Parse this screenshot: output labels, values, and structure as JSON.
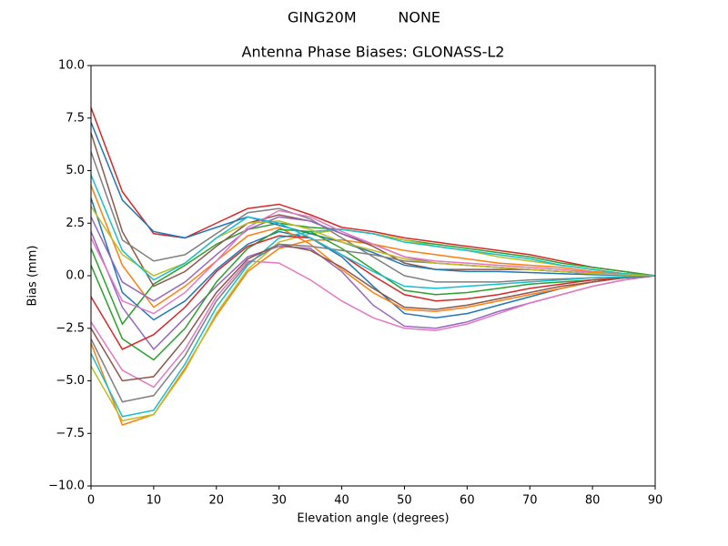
{
  "chart_data": {
    "type": "line",
    "suptitle": "GING20M         NONE",
    "title": "Antenna Phase Biases: GLONASS-L2",
    "xlabel": "Elevation angle (degrees)",
    "ylabel": "Bias (mm)",
    "x": [
      0,
      5,
      10,
      15,
      20,
      25,
      30,
      35,
      40,
      45,
      50,
      55,
      60,
      65,
      70,
      75,
      80,
      85,
      90
    ],
    "xlim": [
      0,
      90
    ],
    "ylim": [
      -10,
      10
    ],
    "xticks": [
      0,
      10,
      20,
      30,
      40,
      50,
      60,
      70,
      80,
      90
    ],
    "yticks": [
      {
        "value": -10,
        "label": "−10.0"
      },
      {
        "value": -7.5,
        "label": "−7.5"
      },
      {
        "value": -5,
        "label": "−5.0"
      },
      {
        "value": -2.5,
        "label": "−2.5"
      },
      {
        "value": 0,
        "label": "0.0"
      },
      {
        "value": 2.5,
        "label": "2.5"
      },
      {
        "value": 5,
        "label": "5.0"
      },
      {
        "value": 7.5,
        "label": "7.5"
      },
      {
        "value": 10,
        "label": "10.0"
      }
    ],
    "series": [
      {
        "color": "#d62728",
        "values": [
          8,
          4,
          2,
          1.8,
          2.5,
          3.2,
          3.4,
          2.9,
          2.3,
          2.1,
          1.8,
          1.6,
          1.4,
          1.2,
          1.0,
          0.7,
          0.4,
          0.2,
          0
        ]
      },
      {
        "color": "#ff7f0e",
        "values": [
          -3.2,
          -7.1,
          -6.6,
          -4.4,
          -1.9,
          0.2,
          1.3,
          1.7,
          1.7,
          1.5,
          1.2,
          1.0,
          0.8,
          0.6,
          0.5,
          0.4,
          0.2,
          0.1,
          0
        ]
      },
      {
        "color": "#1f77b4",
        "values": [
          3.7,
          -0.8,
          -2.1,
          -1.2,
          0.3,
          1.5,
          2.1,
          1.8,
          0.9,
          -0.5,
          -1.8,
          -2.0,
          -1.8,
          -1.4,
          -1.0,
          -0.6,
          -0.3,
          -0.1,
          0
        ]
      },
      {
        "color": "#2ca02c",
        "values": [
          1.3,
          -2.3,
          -0.4,
          0.5,
          1.5,
          2.2,
          2.5,
          2.3,
          2.2,
          2.0,
          1.7,
          1.5,
          1.3,
          1.1,
          0.9,
          0.6,
          0.4,
          0.2,
          0
        ]
      },
      {
        "color": "#9467bd",
        "values": [
          2.1,
          -1.5,
          -3.5,
          -2.0,
          -0.5,
          0.9,
          1.4,
          1.3,
          0.2,
          -1.4,
          -2.4,
          -2.5,
          -2.2,
          -1.7,
          -1.3,
          -0.9,
          -0.5,
          -0.2,
          0
        ]
      },
      {
        "color": "#8c564b",
        "values": [
          6.8,
          2.1,
          -0.5,
          0.2,
          1.4,
          2.5,
          2.9,
          2.6,
          2.0,
          1.4,
          0.6,
          0.3,
          0.3,
          0.3,
          0.3,
          0.2,
          0.1,
          0.05,
          0
        ]
      },
      {
        "color": "#e377c2",
        "values": [
          -2.2,
          -4.5,
          -5.3,
          -3.5,
          -1.0,
          0.7,
          0.6,
          -0.2,
          -1.2,
          -2.0,
          -2.5,
          -2.6,
          -2.3,
          -1.8,
          -1.3,
          -0.9,
          -0.5,
          -0.2,
          0
        ]
      },
      {
        "color": "#7f7f7f",
        "values": [
          5.9,
          1.7,
          0.7,
          1.0,
          2.0,
          3.0,
          3.2,
          2.7,
          1.8,
          0.9,
          0.0,
          -0.3,
          -0.3,
          -0.3,
          -0.2,
          -0.15,
          -0.1,
          -0.05,
          0
        ]
      },
      {
        "color": "#bcbd22",
        "values": [
          -4.3,
          -6.9,
          -6.6,
          -4.5,
          -1.8,
          0.3,
          1.6,
          2.0,
          2.2,
          2.0,
          1.7,
          1.4,
          1.2,
          0.9,
          0.7,
          0.5,
          0.3,
          0.1,
          0
        ]
      },
      {
        "color": "#17becf",
        "values": [
          -3.7,
          -6.7,
          -6.4,
          -4.2,
          -1.5,
          0.5,
          1.8,
          2.1,
          2.2,
          2.0,
          1.6,
          1.4,
          1.2,
          1.0,
          0.8,
          0.5,
          0.3,
          0.1,
          0
        ]
      },
      {
        "color": "#1f77b4",
        "values": [
          7.3,
          3.6,
          2.1,
          1.8,
          2.3,
          2.8,
          2.4,
          2.0,
          1.6,
          1.1,
          0.5,
          0.3,
          0.2,
          0.2,
          0.15,
          0.1,
          0.05,
          0.02,
          0
        ]
      },
      {
        "color": "#ff7f0e",
        "values": [
          4.3,
          0.5,
          -1.5,
          -0.5,
          0.7,
          1.9,
          2.3,
          1.5,
          0.3,
          -0.8,
          -1.6,
          -1.7,
          -1.5,
          -1.2,
          -0.9,
          -0.6,
          -0.3,
          -0.1,
          0
        ]
      },
      {
        "color": "#2ca02c",
        "values": [
          0.5,
          -3.0,
          -4.0,
          -2.5,
          -0.3,
          1.3,
          2.2,
          2.1,
          1.3,
          0.3,
          -0.7,
          -0.9,
          -0.8,
          -0.6,
          -0.4,
          -0.3,
          -0.2,
          -0.1,
          0
        ]
      },
      {
        "color": "#d62728",
        "values": [
          -1.0,
          -3.5,
          -2.8,
          -1.5,
          0.2,
          1.4,
          1.9,
          1.8,
          1.0,
          0.0,
          -0.9,
          -1.2,
          -1.1,
          -0.9,
          -0.6,
          -0.4,
          -0.2,
          -0.1,
          0
        ]
      },
      {
        "color": "#9467bd",
        "values": [
          2.8,
          -0.3,
          -1.2,
          -0.3,
          1.0,
          2.2,
          2.8,
          2.6,
          2.0,
          1.5,
          0.9,
          0.6,
          0.5,
          0.4,
          0.3,
          0.2,
          0.1,
          0.05,
          0
        ]
      },
      {
        "color": "#8c564b",
        "values": [
          -2.5,
          -5.0,
          -4.8,
          -3.0,
          -0.8,
          0.8,
          1.5,
          1.2,
          0.4,
          -0.6,
          -1.5,
          -1.6,
          -1.4,
          -1.1,
          -0.8,
          -0.5,
          -0.3,
          -0.1,
          0
        ]
      },
      {
        "color": "#e377c2",
        "values": [
          1.8,
          -1.2,
          -1.8,
          -0.8,
          0.7,
          2.3,
          3.1,
          2.8,
          2.1,
          1.5,
          0.9,
          0.7,
          0.6,
          0.5,
          0.4,
          0.3,
          0.15,
          0.05,
          0
        ]
      },
      {
        "color": "#7f7f7f",
        "values": [
          -3.0,
          -6.0,
          -5.7,
          -3.8,
          -1.2,
          0.6,
          1.5,
          1.4,
          1.2,
          1.0,
          0.7,
          0.6,
          0.5,
          0.4,
          0.3,
          0.2,
          0.1,
          0.05,
          0
        ]
      },
      {
        "color": "#bcbd22",
        "values": [
          3.3,
          1.0,
          0.0,
          0.6,
          1.8,
          2.5,
          2.6,
          2.2,
          1.6,
          1.2,
          0.8,
          0.6,
          0.5,
          0.4,
          0.3,
          0.2,
          0.1,
          0.05,
          0
        ]
      },
      {
        "color": "#17becf",
        "values": [
          4.8,
          1.2,
          -0.2,
          0.6,
          1.8,
          2.8,
          2.5,
          1.8,
          1.0,
          0.2,
          -0.5,
          -0.6,
          -0.5,
          -0.4,
          -0.3,
          -0.2,
          -0.1,
          -0.05,
          0
        ]
      }
    ]
  }
}
